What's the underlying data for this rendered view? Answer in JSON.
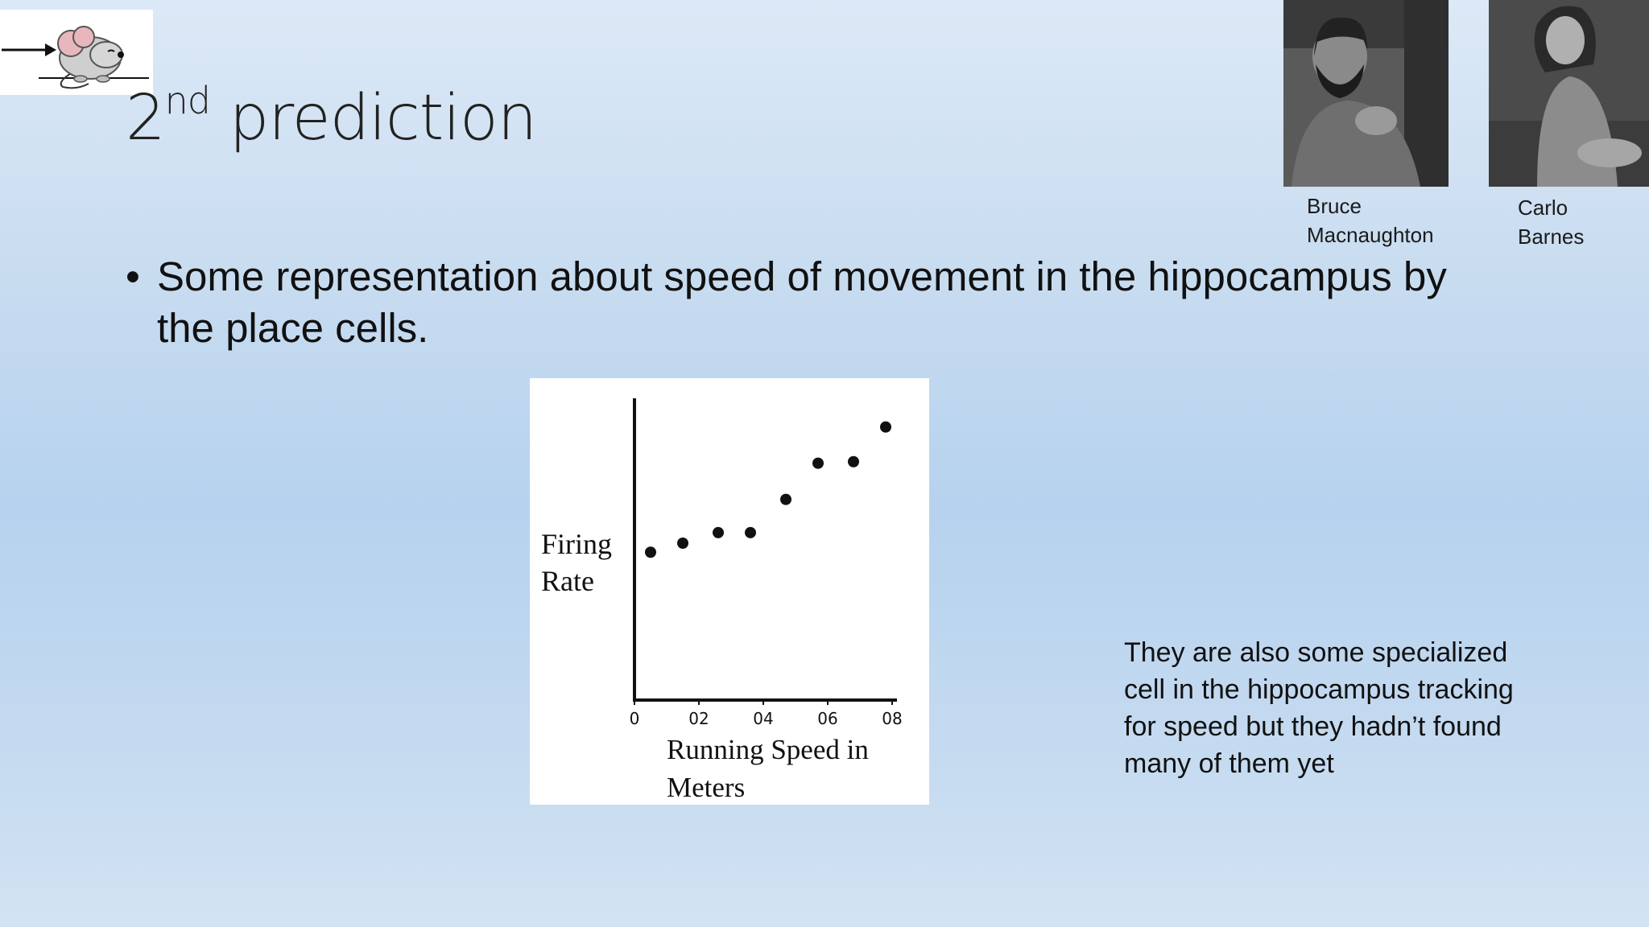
{
  "slide": {
    "title_main": "2",
    "title_sup": "nd",
    "title_rest": " prediction",
    "bullet_text": "Some representation about speed of movement in the hippocampus by the place cells.",
    "side_note": "They are also some specialized cell in the hippocampus tracking for speed but they hadn’t found many of them yet"
  },
  "people": [
    {
      "first": "Bruce",
      "last": "Macnaughton"
    },
    {
      "first": "Carlo",
      "last": "Barnes"
    }
  ],
  "icons": {
    "logo": "mouse-with-arrow-icon"
  },
  "chart_data": {
    "type": "scatter",
    "ylabel_line1": "Firing",
    "ylabel_line2": "Rate",
    "xlabel_line1": "Running Speed in",
    "xlabel_line2": "Meters",
    "x_ticks": [
      "0",
      "02",
      "04",
      "06",
      "08"
    ],
    "x_tick_values": [
      0,
      0.2,
      0.4,
      0.6,
      0.8
    ],
    "xlim": [
      0,
      0.8
    ],
    "ylim": [
      0,
      1
    ],
    "points": [
      {
        "x": 0.05,
        "y": 0.49
      },
      {
        "x": 0.15,
        "y": 0.52
      },
      {
        "x": 0.26,
        "y": 0.555
      },
      {
        "x": 0.36,
        "y": 0.555
      },
      {
        "x": 0.47,
        "y": 0.665
      },
      {
        "x": 0.57,
        "y": 0.785
      },
      {
        "x": 0.68,
        "y": 0.79
      },
      {
        "x": 0.78,
        "y": 0.905
      }
    ],
    "grid": false,
    "color": "#111111"
  }
}
